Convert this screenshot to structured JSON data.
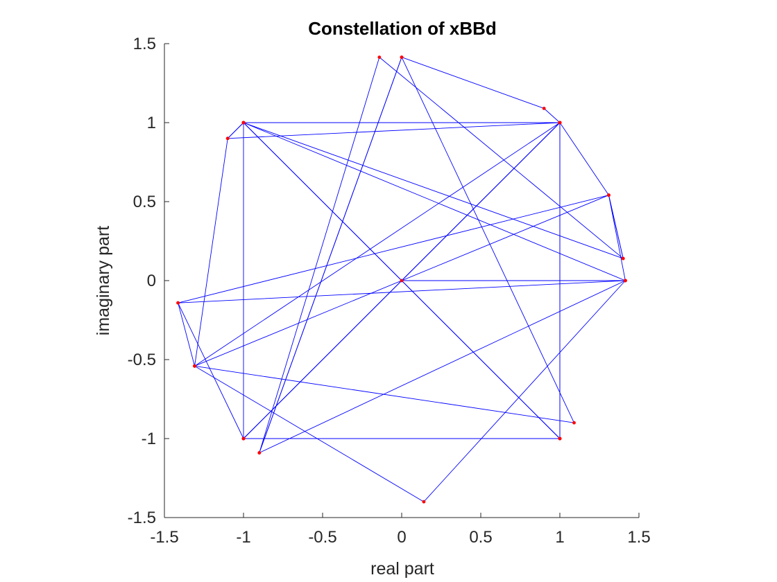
{
  "chart_data": {
    "type": "line",
    "title": "Constellation of xBBd",
    "xlabel": "real part",
    "ylabel": "imaginary part",
    "xlim": [
      -1.5,
      1.5
    ],
    "ylim": [
      -1.5,
      1.5
    ],
    "xticks": [
      -1.5,
      -1,
      -0.5,
      0,
      0.5,
      1,
      1.5
    ],
    "yticks": [
      -1.5,
      -1,
      -0.5,
      0,
      0.5,
      1,
      1.5
    ],
    "xtick_labels": [
      "-1.5",
      "-1",
      "-0.5",
      "0",
      "0.5",
      "1",
      "1.5"
    ],
    "ytick_labels": [
      "-1.5",
      "-1",
      "-0.5",
      "0",
      "0.5",
      "1",
      "1.5"
    ],
    "grid": false,
    "aspect": "equal",
    "line_color": "#0000ff",
    "marker_color": "#ff0000",
    "points": [
      [
        -1,
        1
      ],
      [
        1,
        -1
      ],
      [
        1,
        1
      ],
      [
        -1,
        -1
      ],
      [
        1,
        1
      ],
      [
        0,
        0
      ],
      [
        1.414,
        0
      ],
      [
        -0.9,
        -1.09
      ],
      [
        0,
        1.414
      ],
      [
        1.09,
        -0.9
      ],
      [
        -1.309,
        -0.541
      ],
      [
        1.309,
        0.541
      ],
      [
        1.4,
        0.14
      ],
      [
        -1,
        1
      ],
      [
        1,
        1
      ],
      [
        1,
        -1
      ],
      [
        -1,
        -1
      ],
      [
        -1,
        1
      ],
      [
        -1.1,
        0.9
      ],
      [
        -1.309,
        -0.541
      ],
      [
        1,
        1
      ],
      [
        -1.1,
        0.9
      ],
      [
        -1,
        1
      ],
      [
        1.414,
        0
      ],
      [
        0.14,
        -1.4
      ],
      [
        -1.309,
        -0.541
      ],
      [
        -1.414,
        -0.141
      ],
      [
        1.309,
        0.541
      ],
      [
        1,
        1
      ],
      [
        0.9,
        1.09
      ],
      [
        0,
        1.414
      ],
      [
        -0.9,
        -1.09
      ],
      [
        -0.141,
        1.414
      ],
      [
        1.4,
        0.14
      ],
      [
        1.309,
        0.541
      ],
      [
        1.414,
        0
      ],
      [
        -1.414,
        -0.141
      ],
      [
        -1,
        -1
      ],
      [
        1,
        1
      ],
      [
        -1,
        -1
      ],
      [
        1,
        -1
      ],
      [
        -1,
        1
      ],
      [
        1,
        -1
      ]
    ]
  }
}
